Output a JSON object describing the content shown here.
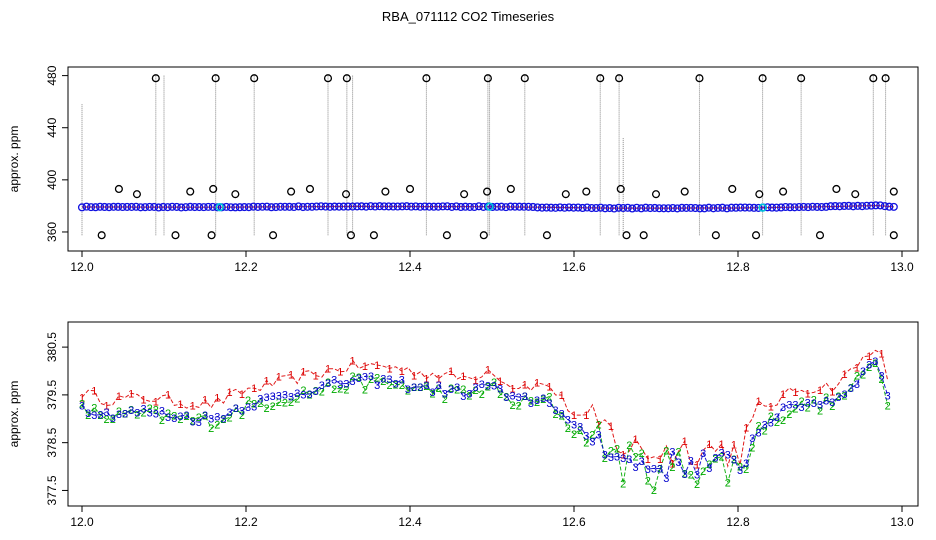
{
  "chart_data": {
    "title": "RBA_071112  CO2 Timeseries",
    "panels": [
      {
        "type": "scatter",
        "ylabel": "approx. ppm",
        "xlabel": "",
        "xlim": [
          12.0,
          13.0
        ],
        "ylim": [
          350,
          482
        ],
        "xticks": [
          "12.0",
          "12.2",
          "12.4",
          "12.6",
          "12.8",
          "13.0"
        ],
        "yticks": [
          "360",
          "400",
          "440",
          "480"
        ],
        "baseline": [
          [
            12.0,
            379.2
          ],
          [
            12.16,
            379.0
          ],
          [
            12.33,
            379.6
          ],
          [
            12.5,
            379.4
          ],
          [
            12.65,
            378.3
          ],
          [
            12.8,
            378.4
          ],
          [
            12.9,
            379.3
          ],
          [
            12.97,
            380.3
          ],
          [
            12.99,
            379.3
          ]
        ],
        "spikes_high": [
          12.09,
          12.163,
          12.21,
          12.3,
          12.323,
          12.42,
          12.495,
          12.54,
          12.632,
          12.655,
          12.753,
          12.83,
          12.877,
          12.965,
          12.98
        ],
        "spikes_low": [
          12.024,
          12.114,
          12.158,
          12.233,
          12.328,
          12.356,
          12.445,
          12.49,
          12.567,
          12.664,
          12.685,
          12.773,
          12.822,
          12.9,
          12.99
        ],
        "bumps_mid": [
          12.045,
          12.067,
          12.132,
          12.16,
          12.187,
          12.255,
          12.278,
          12.322,
          12.37,
          12.4,
          12.466,
          12.494,
          12.523,
          12.59,
          12.615,
          12.657,
          12.7,
          12.735,
          12.793,
          12.826,
          12.855,
          12.92,
          12.943,
          12.99
        ]
      },
      {
        "type": "line",
        "ylabel": "approx. ppm",
        "xlabel": "",
        "xlim": [
          12.0,
          13.0
        ],
        "ylim": [
          377.3,
          380.9
        ],
        "xticks": [
          "12.0",
          "12.2",
          "12.4",
          "12.6",
          "12.8",
          "13.0"
        ],
        "yticks": [
          "377.5",
          "378.5",
          "379.5",
          "380.5"
        ],
        "trend": [
          [
            12.0,
            379.25
          ],
          [
            12.03,
            379.1
          ],
          [
            12.08,
            379.15
          ],
          [
            12.12,
            379.05
          ],
          [
            12.16,
            379.0
          ],
          [
            12.2,
            379.3
          ],
          [
            12.25,
            379.5
          ],
          [
            12.3,
            379.7
          ],
          [
            12.33,
            379.8
          ],
          [
            12.37,
            379.8
          ],
          [
            12.42,
            379.65
          ],
          [
            12.47,
            379.55
          ],
          [
            12.5,
            379.75
          ],
          [
            12.52,
            379.4
          ],
          [
            12.57,
            379.4
          ],
          [
            12.6,
            378.8
          ],
          [
            12.64,
            378.5
          ],
          [
            12.66,
            378.1
          ],
          [
            12.7,
            378.0
          ],
          [
            12.75,
            378.1
          ],
          [
            12.8,
            378.0
          ],
          [
            12.83,
            378.9
          ],
          [
            12.87,
            379.3
          ],
          [
            12.92,
            379.4
          ],
          [
            12.95,
            379.9
          ],
          [
            12.97,
            380.3
          ],
          [
            12.985,
            379.3
          ]
        ],
        "series": [
          {
            "name": "1",
            "color": "#dd0000",
            "offset": 0.3,
            "noise": 0.25
          },
          {
            "name": "2",
            "color": "#00aa00",
            "offset": -0.05,
            "noise": 0.3
          },
          {
            "name": "3",
            "color": "#0000cc",
            "offset": 0.0,
            "noise": 0.2
          }
        ]
      }
    ]
  }
}
